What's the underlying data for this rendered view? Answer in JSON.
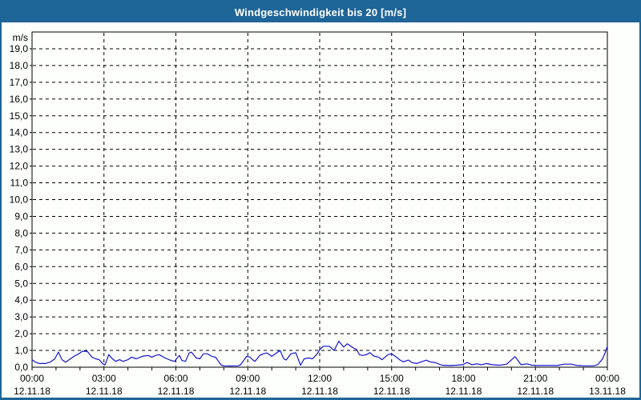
{
  "window": {
    "title": "Windgeschwindigkeit bis 20 [m/s]"
  },
  "colors": {
    "titlebar_bg": "#1e6598",
    "titlebar_text": "#ffffff",
    "window_border": "#1e6598",
    "plot_background": "#fdfffd",
    "axis": "#000000",
    "grid": "#000000",
    "series_line": "#1414cd"
  },
  "chart_data": {
    "type": "line",
    "title": "Windgeschwindigkeit bis 20 [m/s]",
    "ylabel": "m/s",
    "unit_label": "m/s",
    "ylim": [
      0,
      20
    ],
    "xlim_hours": [
      0,
      24
    ],
    "grid": "dashed black; horizontal every 1 m/s (1,0–19,0), vertical every 3 h",
    "legend_position": "none",
    "y_tick_labels": [
      "0,0",
      "1,0",
      "2,0",
      "3,0",
      "4,0",
      "5,0",
      "6,0",
      "7,0",
      "8,0",
      "9,0",
      "10,0",
      "11,0",
      "12,0",
      "13,0",
      "14,0",
      "15,0",
      "16,0",
      "17,0",
      "18,0",
      "19,0"
    ],
    "x_ticks": [
      {
        "hour": 0,
        "time": "00:00",
        "date": "12.11.18"
      },
      {
        "hour": 3,
        "time": "03:00",
        "date": "12.11.18"
      },
      {
        "hour": 6,
        "time": "06:00",
        "date": "12.11.18"
      },
      {
        "hour": 9,
        "time": "09:00",
        "date": "12.11.18"
      },
      {
        "hour": 12,
        "time": "12:00",
        "date": "12.11.18"
      },
      {
        "hour": 15,
        "time": "15:00",
        "date": "12.11.18"
      },
      {
        "hour": 18,
        "time": "18:00",
        "date": "12.11.18"
      },
      {
        "hour": 21,
        "time": "21:00",
        "date": "12.11.18"
      },
      {
        "hour": 24,
        "time": "00:00",
        "date": "13.11.18"
      }
    ],
    "minor_x_tick_interval_hours": 1,
    "series": [
      {
        "name": "Windgeschwindigkeit",
        "color": "#1414cd",
        "points_hour_mps": [
          [
            0,
            0.45
          ],
          [
            0.15,
            0.3
          ],
          [
            0.3,
            0.22
          ],
          [
            0.55,
            0.22
          ],
          [
            0.75,
            0.3
          ],
          [
            0.95,
            0.5
          ],
          [
            1.1,
            0.9
          ],
          [
            1.25,
            0.45
          ],
          [
            1.4,
            0.3
          ],
          [
            1.6,
            0.5
          ],
          [
            1.75,
            0.65
          ],
          [
            1.95,
            0.8
          ],
          [
            2.1,
            0.95
          ],
          [
            2.3,
            0.95
          ],
          [
            2.5,
            0.6
          ],
          [
            2.65,
            0.5
          ],
          [
            2.8,
            0.45
          ],
          [
            2.95,
            0.2
          ],
          [
            3.05,
            0.15
          ],
          [
            3.2,
            0.75
          ],
          [
            3.35,
            0.5
          ],
          [
            3.5,
            0.35
          ],
          [
            3.65,
            0.45
          ],
          [
            3.8,
            0.35
          ],
          [
            4,
            0.45
          ],
          [
            4.15,
            0.6
          ],
          [
            4.35,
            0.5
          ],
          [
            4.6,
            0.65
          ],
          [
            4.85,
            0.7
          ],
          [
            5,
            0.6
          ],
          [
            5.15,
            0.7
          ],
          [
            5.3,
            0.75
          ],
          [
            5.55,
            0.55
          ],
          [
            5.8,
            0.4
          ],
          [
            5.95,
            0.35
          ],
          [
            6.05,
            0.55
          ],
          [
            6.15,
            0.7
          ],
          [
            6.25,
            0.4
          ],
          [
            6.4,
            0.35
          ],
          [
            6.55,
            0.85
          ],
          [
            6.65,
            0.9
          ],
          [
            6.85,
            0.55
          ],
          [
            7,
            0.5
          ],
          [
            7.15,
            0.8
          ],
          [
            7.3,
            0.8
          ],
          [
            7.5,
            0.65
          ],
          [
            7.65,
            0.6
          ],
          [
            7.8,
            0.3
          ],
          [
            7.9,
            0.12
          ],
          [
            8,
            0.08
          ],
          [
            8.3,
            0.07
          ],
          [
            8.6,
            0.08
          ],
          [
            8.7,
            0.15
          ],
          [
            8.85,
            0.45
          ],
          [
            8.95,
            0.65
          ],
          [
            9.1,
            0.6
          ],
          [
            9.2,
            0.45
          ],
          [
            9.3,
            0.35
          ],
          [
            9.5,
            0.7
          ],
          [
            9.65,
            0.8
          ],
          [
            9.8,
            0.85
          ],
          [
            10,
            0.65
          ],
          [
            10.15,
            0.8
          ],
          [
            10.35,
            1
          ],
          [
            10.5,
            0.5
          ],
          [
            10.6,
            0.43
          ],
          [
            10.8,
            0.8
          ],
          [
            11,
            0.87
          ],
          [
            11.2,
            0.12
          ],
          [
            11.35,
            0.5
          ],
          [
            11.55,
            0.55
          ],
          [
            11.7,
            0.5
          ],
          [
            11.9,
            0.8
          ],
          [
            12,
            1.05
          ],
          [
            12.15,
            1.25
          ],
          [
            12.4,
            1.25
          ],
          [
            12.6,
            1
          ],
          [
            12.8,
            1.55
          ],
          [
            13,
            1.2
          ],
          [
            13.15,
            1.4
          ],
          [
            13.4,
            1.15
          ],
          [
            13.55,
            1.05
          ],
          [
            13.65,
            0.75
          ],
          [
            13.8,
            0.7
          ],
          [
            13.95,
            0.75
          ],
          [
            14.1,
            0.87
          ],
          [
            14.25,
            0.67
          ],
          [
            14.45,
            0.6
          ],
          [
            14.6,
            0.45
          ],
          [
            14.85,
            0.75
          ],
          [
            15,
            0.8
          ],
          [
            15.2,
            0.6
          ],
          [
            15.35,
            0.43
          ],
          [
            15.5,
            0.32
          ],
          [
            15.7,
            0.43
          ],
          [
            15.85,
            0.27
          ],
          [
            16.05,
            0.22
          ],
          [
            16.2,
            0.3
          ],
          [
            16.45,
            0.42
          ],
          [
            16.6,
            0.32
          ],
          [
            16.8,
            0.28
          ],
          [
            17.1,
            0.12
          ],
          [
            17.4,
            0.1
          ],
          [
            17.7,
            0.12
          ],
          [
            17.95,
            0.15
          ],
          [
            18.15,
            0.28
          ],
          [
            18.35,
            0.15
          ],
          [
            18.55,
            0.2
          ],
          [
            18.75,
            0.15
          ],
          [
            18.95,
            0.22
          ],
          [
            19.2,
            0.15
          ],
          [
            19.5,
            0.12
          ],
          [
            19.8,
            0.18
          ],
          [
            20.15,
            0.63
          ],
          [
            20.4,
            0.15
          ],
          [
            20.65,
            0.2
          ],
          [
            20.85,
            0.12
          ],
          [
            21.1,
            0.1
          ],
          [
            21.5,
            0.1
          ],
          [
            21.9,
            0.1
          ],
          [
            22.2,
            0.18
          ],
          [
            22.5,
            0.18
          ],
          [
            22.75,
            0.1
          ],
          [
            23.1,
            0.08
          ],
          [
            23.4,
            0.08
          ],
          [
            23.6,
            0.15
          ],
          [
            23.8,
            0.5
          ],
          [
            23.92,
            0.9
          ],
          [
            24,
            1.25
          ]
        ]
      }
    ]
  }
}
